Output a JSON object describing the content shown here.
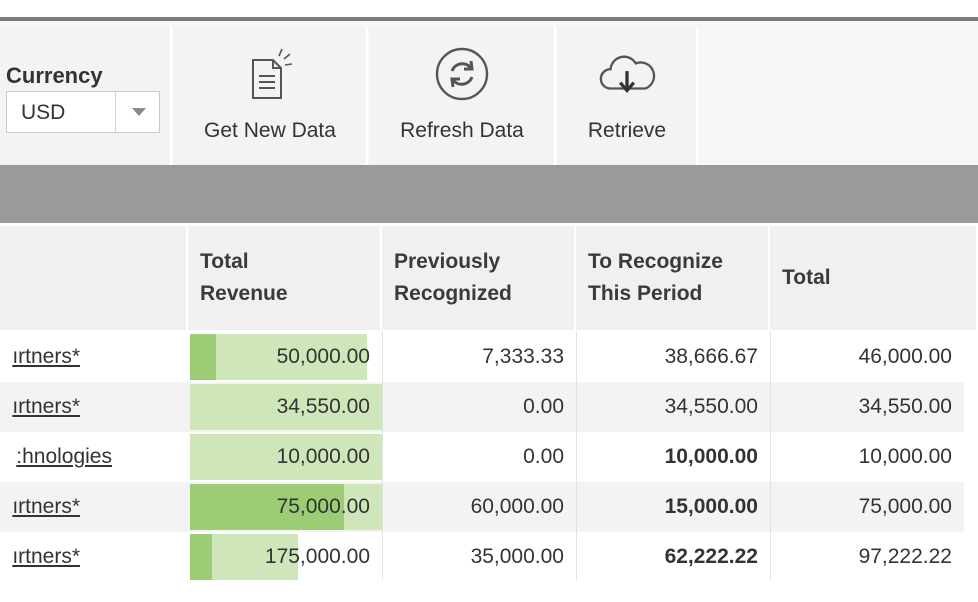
{
  "toolbar": {
    "currency": {
      "label": "Currency",
      "value": "USD",
      "caret_icon": "chevron-down-icon"
    },
    "buttons": [
      {
        "label": "Get New Data",
        "icon": "new-document-icon"
      },
      {
        "label": "Refresh Data",
        "icon": "refresh-icon"
      },
      {
        "label": "Retrieve",
        "icon": "cloud-download-icon"
      }
    ]
  },
  "table": {
    "columns": {
      "total_revenue": [
        "Total",
        "Revenue"
      ],
      "previously_recognized": [
        "Previously",
        "Recognized"
      ],
      "to_recognize": [
        "To Recognize",
        "This Period"
      ],
      "total": "Total"
    },
    "rows": [
      {
        "name": "ırtners*",
        "total_revenue": "50,000.00",
        "previously_recognized": "7,333.33",
        "to_recognize": "38,666.67",
        "to_recognize_bold": false,
        "total": "46,000.00",
        "bar_outer": 0.92,
        "bar_inner": 0.15
      },
      {
        "name": "ırtners*",
        "total_revenue": "34,550.00",
        "previously_recognized": "0.00",
        "to_recognize": "34,550.00",
        "to_recognize_bold": false,
        "total": "34,550.00",
        "bar_outer": 1.0,
        "bar_inner": 0.0
      },
      {
        "name": ":hnologies",
        "total_revenue": "10,000.00",
        "previously_recognized": "0.00",
        "to_recognize": "10,000.00",
        "to_recognize_bold": true,
        "total": "10,000.00",
        "bar_outer": 1.0,
        "bar_inner": 0.0
      },
      {
        "name": "ırtners*",
        "total_revenue": "75,000.00",
        "previously_recognized": "60,000.00",
        "to_recognize": "15,000.00",
        "to_recognize_bold": true,
        "total": "75,000.00",
        "bar_outer": 1.0,
        "bar_inner": 0.8
      },
      {
        "name": "ırtners*",
        "total_revenue": "175,000.00",
        "previously_recognized": "35,000.00",
        "to_recognize": "62,222.22",
        "to_recognize_bold": true,
        "total": "97,222.22",
        "bar_outer": 0.56,
        "bar_inner": 0.2
      }
    ]
  },
  "colors": {
    "bar_light": "#cfe6ba",
    "bar_dark": "#9ccc73",
    "band_gray": "#9a9a9a"
  }
}
